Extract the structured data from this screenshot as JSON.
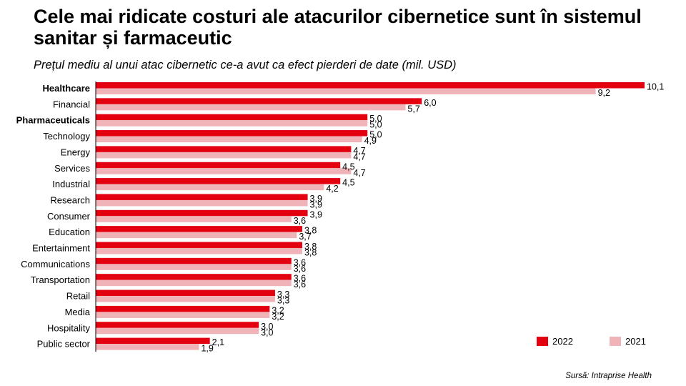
{
  "title": "Cele mai ridicate costuri ale atacurilor cibernetice sunt în sistemul sanitar și farmaceutic",
  "subtitle": "Prețul mediu al unui atac cibernetic ce-a avut ca efect pierderi de date (mil. USD)",
  "source": "Sursă: Intraprise Health",
  "colors": {
    "series_2022": "#e3000f",
    "series_2021": "#f0b4b8",
    "axis": "#000000"
  },
  "chart_data": {
    "type": "bar",
    "orientation": "horizontal",
    "categories": [
      "Healthcare",
      "Financial",
      "Pharmaceuticals",
      "Technology",
      "Energy",
      "Services",
      "Industrial",
      "Research",
      "Consumer",
      "Education",
      "Entertainment",
      "Communications",
      "Transportation",
      "Retail",
      "Media",
      "Hospitality",
      "Public sector"
    ],
    "bold_categories": [
      "Healthcare",
      "Pharmaceuticals"
    ],
    "series": [
      {
        "name": "2022",
        "values": [
          10.1,
          6.0,
          5.0,
          5.0,
          4.7,
          4.5,
          4.5,
          3.9,
          3.9,
          3.8,
          3.8,
          3.6,
          3.6,
          3.3,
          3.2,
          3.0,
          2.1
        ],
        "labels": [
          "10,1",
          "6,0",
          "5,0",
          "5,0",
          "4,7",
          "4,5",
          "4,5",
          "3,9",
          "3,9",
          "3,8",
          "3,8",
          "3,6",
          "3,6",
          "3,3",
          "3,2",
          "3,0",
          "2,1"
        ]
      },
      {
        "name": "2021",
        "values": [
          9.2,
          5.7,
          5.0,
          4.9,
          4.7,
          4.7,
          4.2,
          3.9,
          3.6,
          3.7,
          3.8,
          3.6,
          3.6,
          3.3,
          3.2,
          3.0,
          1.9
        ],
        "labels": [
          "9,2",
          "5,7",
          "5,0",
          "4,9",
          "4,7",
          "4,7",
          "4,2",
          "3,9",
          "3,6",
          "3,7",
          "3,8",
          "3,6",
          "3,6",
          "3,3",
          "3,2",
          "3,0",
          "1,9"
        ]
      }
    ],
    "xlim": [
      0,
      10.1
    ],
    "grid": false,
    "legend_position": "bottom-right"
  }
}
